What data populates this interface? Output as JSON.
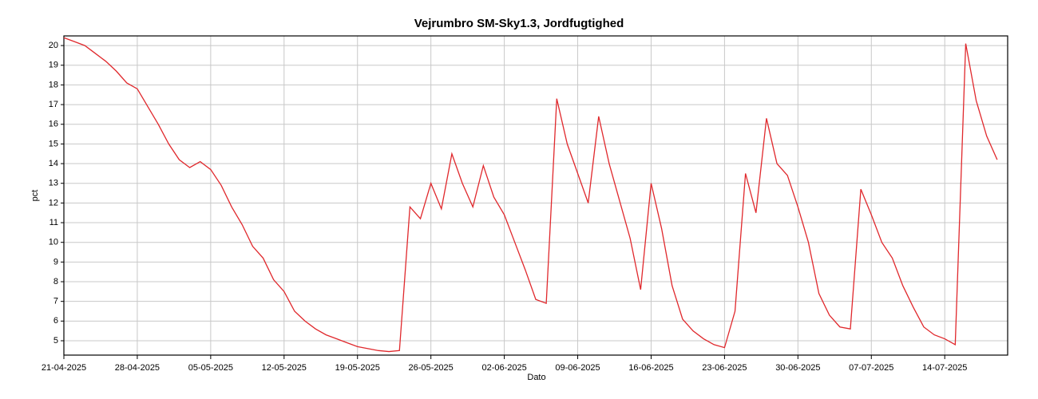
{
  "chart_data": {
    "type": "line",
    "title": "Vejrumbro SM-Sky1.3, Jordfugtighed",
    "x_label": "Dato",
    "y_label": "pct",
    "color": "#e0282c",
    "grid": true,
    "xlim": [
      "2025-04-21",
      "2025-07-20"
    ],
    "ylim": [
      4.27,
      20.49
    ],
    "yticks": [
      5,
      6,
      7,
      8,
      9,
      10,
      11,
      12,
      13,
      14,
      15,
      16,
      17,
      18,
      19,
      20
    ],
    "xticks": [
      {
        "value": "2025-04-21",
        "label": "21-04-2025"
      },
      {
        "value": "2025-04-28",
        "label": "28-04-2025"
      },
      {
        "value": "2025-05-05",
        "label": "05-05-2025"
      },
      {
        "value": "2025-05-12",
        "label": "12-05-2025"
      },
      {
        "value": "2025-05-19",
        "label": "19-05-2025"
      },
      {
        "value": "2025-05-26",
        "label": "26-05-2025"
      },
      {
        "value": "2025-06-02",
        "label": "02-06-2025"
      },
      {
        "value": "2025-06-09",
        "label": "09-06-2025"
      },
      {
        "value": "2025-06-16",
        "label": "16-06-2025"
      },
      {
        "value": "2025-06-23",
        "label": "23-06-2025"
      },
      {
        "value": "2025-06-30",
        "label": "30-06-2025"
      },
      {
        "value": "2025-07-07",
        "label": "07-07-2025"
      },
      {
        "value": "2025-07-14",
        "label": "14-07-2025"
      }
    ],
    "x": [
      "2025-04-21",
      "2025-04-22",
      "2025-04-23",
      "2025-04-24",
      "2025-04-25",
      "2025-04-26",
      "2025-04-27",
      "2025-04-28",
      "2025-04-29",
      "2025-04-30",
      "2025-05-01",
      "2025-05-02",
      "2025-05-03",
      "2025-05-04",
      "2025-05-05",
      "2025-05-06",
      "2025-05-07",
      "2025-05-08",
      "2025-05-09",
      "2025-05-10",
      "2025-05-11",
      "2025-05-12",
      "2025-05-13",
      "2025-05-14",
      "2025-05-15",
      "2025-05-16",
      "2025-05-17",
      "2025-05-18",
      "2025-05-19",
      "2025-05-20",
      "2025-05-21",
      "2025-05-22",
      "2025-05-23",
      "2025-05-24",
      "2025-05-25",
      "2025-05-26",
      "2025-05-27",
      "2025-05-28",
      "2025-05-29",
      "2025-05-30",
      "2025-05-31",
      "2025-06-01",
      "2025-06-02",
      "2025-06-03",
      "2025-06-04",
      "2025-06-05",
      "2025-06-06",
      "2025-06-07",
      "2025-06-08",
      "2025-06-09",
      "2025-06-10",
      "2025-06-11",
      "2025-06-12",
      "2025-06-13",
      "2025-06-14",
      "2025-06-15",
      "2025-06-16",
      "2025-06-17",
      "2025-06-18",
      "2025-06-19",
      "2025-06-20",
      "2025-06-21",
      "2025-06-22",
      "2025-06-23",
      "2025-06-24",
      "2025-06-25",
      "2025-06-26",
      "2025-06-27",
      "2025-06-28",
      "2025-06-29",
      "2025-06-30",
      "2025-07-01",
      "2025-07-02",
      "2025-07-03",
      "2025-07-04",
      "2025-07-05",
      "2025-07-06",
      "2025-07-07",
      "2025-07-08",
      "2025-07-09",
      "2025-07-10",
      "2025-07-11",
      "2025-07-12",
      "2025-07-13",
      "2025-07-14",
      "2025-07-15",
      "2025-07-16",
      "2025-07-17",
      "2025-07-18",
      "2025-07-19"
    ],
    "values": [
      20.4,
      20.2,
      20.0,
      19.6,
      19.2,
      18.7,
      18.1,
      17.8,
      16.9,
      16.0,
      15.0,
      14.2,
      13.8,
      14.1,
      13.7,
      12.9,
      11.8,
      10.9,
      9.8,
      9.2,
      8.1,
      7.5,
      6.5,
      6.0,
      5.6,
      5.3,
      5.1,
      4.9,
      4.7,
      4.6,
      4.5,
      4.45,
      4.5,
      11.8,
      11.2,
      13.0,
      11.7,
      14.5,
      13.0,
      11.8,
      13.9,
      12.3,
      11.4,
      10.0,
      8.6,
      7.1,
      6.9,
      17.3,
      15.0,
      13.5,
      12.0,
      16.4,
      14.0,
      12.1,
      10.2,
      7.6,
      13.0,
      10.7,
      7.8,
      6.1,
      5.5,
      5.1,
      4.8,
      4.65,
      6.5,
      13.5,
      11.5,
      16.3,
      14.0,
      13.4,
      11.8,
      10.0,
      7.4,
      6.3,
      5.7,
      5.6,
      12.7,
      11.4,
      10.0,
      9.2,
      7.8,
      6.7,
      5.7,
      5.3,
      5.1,
      4.8,
      20.1,
      17.2,
      15.4,
      14.2
    ]
  }
}
